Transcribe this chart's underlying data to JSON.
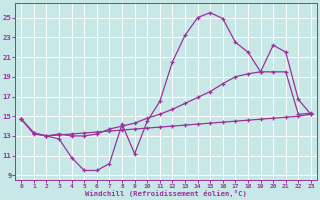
{
  "bg_color": "#c8e8e8",
  "line_color": "#993399",
  "grid_color": "#aacccc",
  "xlabel": "Windchill (Refroidissement éolien,°C)",
  "xlim": [
    -0.5,
    23.5
  ],
  "ylim": [
    8.5,
    26.5
  ],
  "yticks": [
    9,
    11,
    13,
    15,
    17,
    19,
    21,
    23,
    25
  ],
  "xticks": [
    0,
    1,
    2,
    3,
    4,
    5,
    6,
    7,
    8,
    9,
    10,
    11,
    12,
    13,
    14,
    15,
    16,
    17,
    18,
    19,
    20,
    21,
    22,
    23
  ],
  "curve_upper_x": [
    0,
    1,
    2,
    3,
    4,
    5,
    6,
    7,
    8,
    9,
    10,
    11,
    12,
    13,
    14,
    15,
    16,
    17,
    18,
    19,
    20,
    21,
    22,
    23
  ],
  "curve_upper_y": [
    14.7,
    13.2,
    13.0,
    12.7,
    10.8,
    9.5,
    9.5,
    10.2,
    14.2,
    11.2,
    14.5,
    16.5,
    20.5,
    23.2,
    25.0,
    25.5,
    24.9,
    22.5,
    21.5,
    19.5,
    22.2,
    21.5,
    16.7,
    15.2
  ],
  "curve_mid_x": [
    0,
    1,
    2,
    3,
    4,
    5,
    6,
    7,
    8,
    9,
    10,
    11,
    12,
    13,
    14,
    15,
    16,
    17,
    18,
    19,
    20,
    21,
    22,
    23
  ],
  "curve_mid_y": [
    14.7,
    13.3,
    13.0,
    13.2,
    13.0,
    13.0,
    13.2,
    13.7,
    14.0,
    14.3,
    14.8,
    15.2,
    15.7,
    16.3,
    16.9,
    17.5,
    18.3,
    19.0,
    19.3,
    19.5,
    19.5,
    19.5,
    15.2,
    15.3
  ],
  "curve_low_x": [
    0,
    1,
    2,
    3,
    4,
    5,
    6,
    7,
    8,
    9,
    10,
    11,
    12,
    13,
    14,
    15,
    16,
    17,
    18,
    19,
    20,
    21,
    22,
    23
  ],
  "curve_low_y": [
    14.7,
    13.3,
    13.0,
    13.1,
    13.2,
    13.3,
    13.4,
    13.5,
    13.6,
    13.7,
    13.8,
    13.9,
    14.0,
    14.1,
    14.2,
    14.3,
    14.4,
    14.5,
    14.6,
    14.7,
    14.8,
    14.9,
    15.0,
    15.2
  ]
}
